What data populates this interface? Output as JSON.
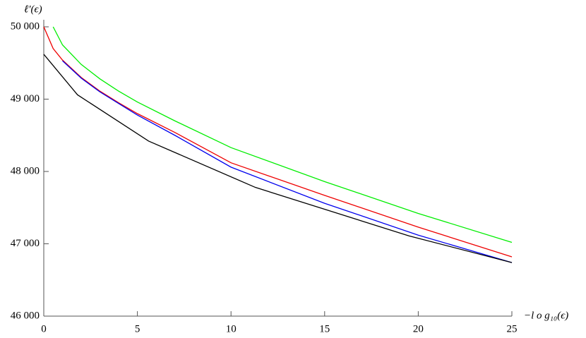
{
  "chart_data": {
    "type": "line",
    "y_label": "ℓ′(ϵ)",
    "x_label": "−l o g₁₀(ϵ)",
    "xlim": [
      0,
      25
    ],
    "xticks": [
      0,
      5,
      10,
      15,
      20,
      25
    ],
    "ylim": [
      46000,
      50000
    ],
    "yticks": [
      {
        "value": 46000,
        "label": "46 000"
      },
      {
        "value": 47000,
        "label": "47 000"
      },
      {
        "value": 48000,
        "label": "48 000"
      },
      {
        "value": 49000,
        "label": "49 000"
      },
      {
        "value": 50000,
        "label": "50 000"
      }
    ],
    "series": [
      {
        "color": "#00ee00",
        "x": [
          0.5,
          1,
          2,
          3,
          4,
          5,
          7,
          10,
          15,
          20,
          25
        ],
        "values": [
          50000,
          49750,
          49480,
          49280,
          49110,
          48960,
          48700,
          48330,
          47860,
          47420,
          47020
        ]
      },
      {
        "color": "#ee0000",
        "x": [
          0,
          0.5,
          1,
          2,
          3,
          4,
          5,
          7,
          10,
          15,
          20,
          25
        ],
        "values": [
          50000,
          49700,
          49540,
          49300,
          49110,
          48950,
          48800,
          48540,
          48120,
          47670,
          47230,
          46820
        ]
      },
      {
        "color": "#0000ee",
        "x": [
          1,
          2,
          3,
          4,
          5,
          7,
          10,
          15,
          20,
          25
        ],
        "values": [
          49530,
          49290,
          49100,
          48940,
          48780,
          48500,
          48060,
          47560,
          47120,
          46740
        ]
      },
      {
        "color": "#000000",
        "x": [
          0,
          1.8,
          5.6,
          11.3,
          19.5,
          25
        ],
        "values": [
          49620,
          49060,
          48420,
          47780,
          47110,
          46740
        ]
      }
    ]
  }
}
